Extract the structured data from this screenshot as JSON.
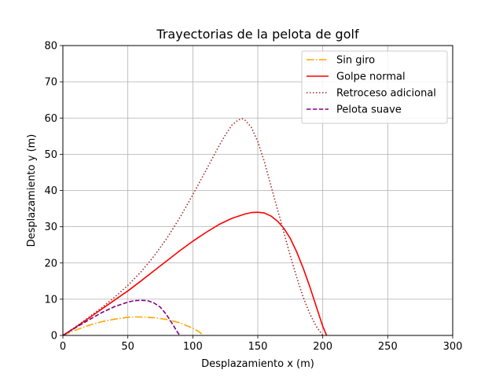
{
  "chart_data": {
    "type": "line",
    "title": "Trayectorias de la pelota de golf",
    "xlabel": "Desplazamiento x (m)",
    "ylabel": "Desplazamiento y (m)",
    "xlim": [
      0,
      300
    ],
    "ylim": [
      0,
      80
    ],
    "xticks": [
      0,
      50,
      100,
      150,
      200,
      250,
      300
    ],
    "yticks": [
      0,
      10,
      20,
      30,
      40,
      50,
      60,
      70,
      80
    ],
    "grid": true,
    "legend_position": "top-right",
    "series": [
      {
        "name": "Sin giro",
        "color": "#ffa500",
        "dash": "dashdot",
        "x": [
          0,
          10,
          20,
          30,
          40,
          50,
          55,
          60,
          70,
          80,
          90,
          100,
          105,
          108
        ],
        "y": [
          0,
          1.5,
          2.8,
          3.8,
          4.5,
          5.0,
          5.1,
          5.1,
          4.9,
          4.4,
          3.5,
          2.0,
          1.0,
          0
        ]
      },
      {
        "name": "Golpe normal",
        "color": "#ff0000",
        "dash": "solid",
        "x": [
          0,
          10,
          20,
          30,
          40,
          50,
          60,
          70,
          80,
          90,
          100,
          110,
          120,
          130,
          140,
          145,
          150,
          155,
          160,
          165,
          170,
          175,
          180,
          185,
          190,
          195,
          200,
          203
        ],
        "y": [
          0,
          2.3,
          4.8,
          7.3,
          9.8,
          12.3,
          15.0,
          17.8,
          20.6,
          23.4,
          26.0,
          28.4,
          30.6,
          32.3,
          33.5,
          33.9,
          34.0,
          33.8,
          33.0,
          31.6,
          29.6,
          26.8,
          23.0,
          18.5,
          13.5,
          8.0,
          2.5,
          0
        ]
      },
      {
        "name": "Retroceso adicional",
        "color": "#a52a2a",
        "dash": "dotted",
        "x": [
          0,
          10,
          20,
          30,
          40,
          50,
          60,
          70,
          80,
          90,
          100,
          110,
          120,
          125,
          130,
          135,
          138,
          140,
          145,
          150,
          155,
          160,
          165,
          170,
          175,
          180,
          185,
          190,
          195,
          200
        ],
        "y": [
          0,
          2.4,
          5.0,
          7.7,
          10.6,
          13.8,
          17.5,
          21.8,
          26.8,
          32.5,
          38.8,
          45.5,
          52.2,
          55.3,
          58.0,
          59.5,
          59.8,
          59.5,
          57.5,
          53.5,
          48.0,
          41.5,
          35.0,
          28.5,
          22.0,
          16.0,
          10.5,
          6.0,
          2.5,
          0
        ]
      },
      {
        "name": "Pelota suave",
        "color": "#800080",
        "dash": "dashed",
        "x": [
          0,
          10,
          20,
          30,
          40,
          50,
          55,
          60,
          65,
          70,
          75,
          80,
          85,
          88,
          90
        ],
        "y": [
          0,
          2.2,
          4.3,
          6.3,
          8.0,
          9.2,
          9.6,
          9.7,
          9.6,
          9.0,
          7.8,
          5.6,
          2.8,
          1.0,
          0
        ]
      }
    ]
  }
}
